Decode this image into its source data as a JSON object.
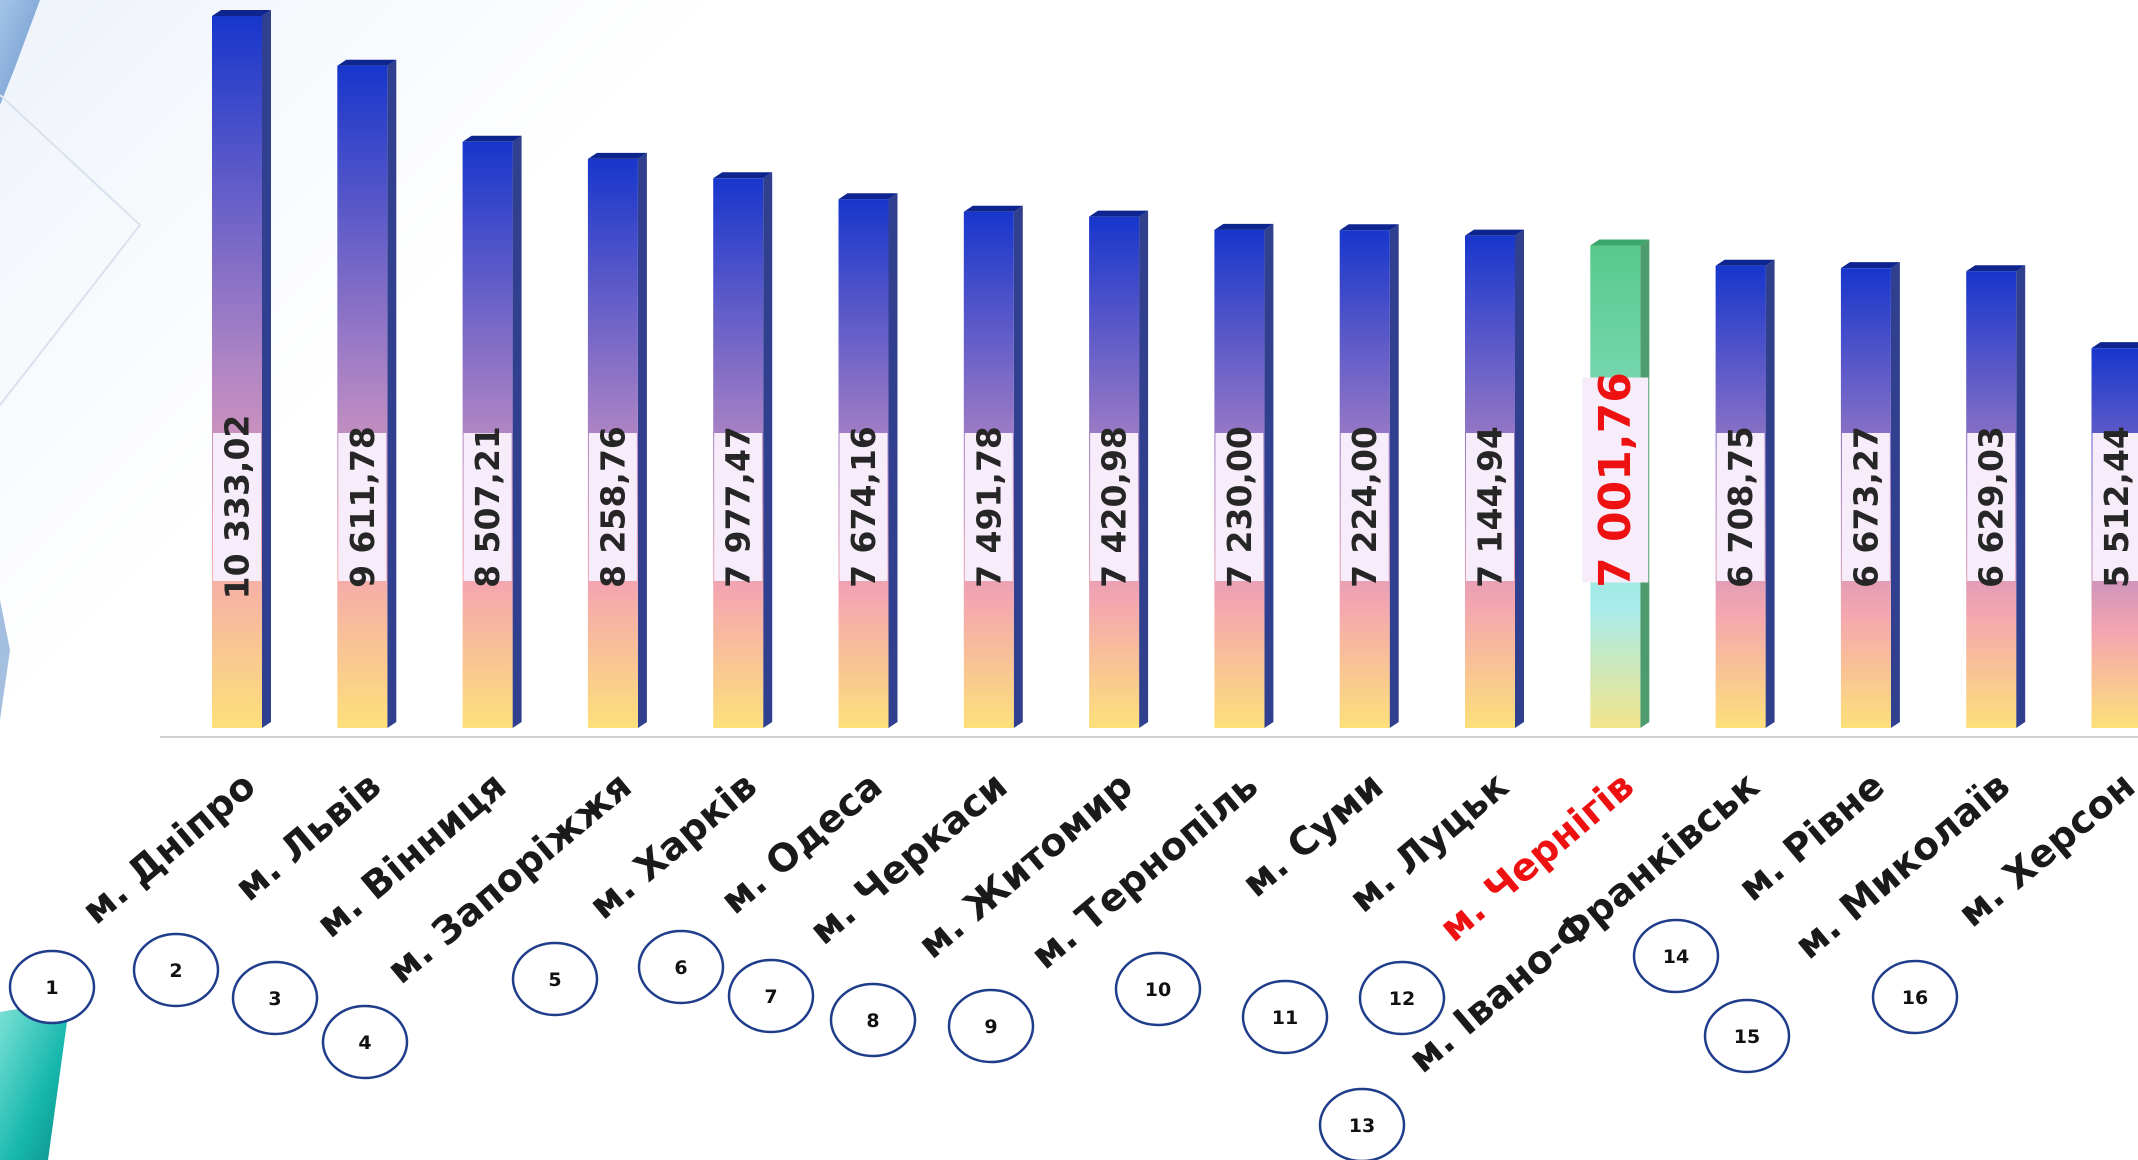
{
  "chart_data": {
    "type": "bar",
    "title": "",
    "xlabel": "",
    "ylabel": "",
    "ylim": [
      0,
      10333.02
    ],
    "grid": false,
    "categories": [
      "м. Дніпро",
      "м. Львів",
      "м. Вінниця",
      "м. Запоріжжя",
      "м. Харків",
      "м. Одеса",
      "м. Черкаси",
      "м. Житомир",
      "м. Тернопіль",
      "м. Суми",
      "м. Луцьк",
      "м. Чернігів",
      "м. Івано-Франківськ",
      "м. Рівне",
      "м. Миколаїв",
      "м. Херсон"
    ],
    "values": [
      10333.02,
      9611.78,
      8507.21,
      8258.76,
      7977.47,
      7674.16,
      7491.78,
      7420.98,
      7230.0,
      7224.0,
      7144.94,
      7001.76,
      6708.75,
      6673.27,
      6629.03,
      5512.44
    ],
    "value_labels": [
      "10 333,02",
      "9 611,78",
      "8 507,21",
      "8 258,76",
      "7 977,47",
      "7 674,16",
      "7 491,78",
      "7 420,98",
      "7 230,00",
      "7 224,00",
      "7 144,94",
      "7 001,76",
      "6 708,75",
      "6 673,27",
      "6 629,03",
      "5 512,44"
    ],
    "highlight": "м. Чернігів",
    "colors": {
      "bar_top": "#1736cc",
      "bar_mid": "#b286c4",
      "bar_low": "#f4a6b0",
      "bar_bottom": "#fde07a",
      "hl_top": "#58c98a",
      "hl_mid": "#a8ecec",
      "hl_bottom": "#f2e48a",
      "highlight_text": "#ee1111",
      "label_box": "#f6ecfa",
      "axis": "#cfcfcf"
    }
  },
  "rank_bubbles": [
    "1",
    "2",
    "3",
    "4",
    "5",
    "6",
    "7",
    "8",
    "9",
    "10",
    "11",
    "12",
    "13",
    "14",
    "15",
    "16"
  ]
}
